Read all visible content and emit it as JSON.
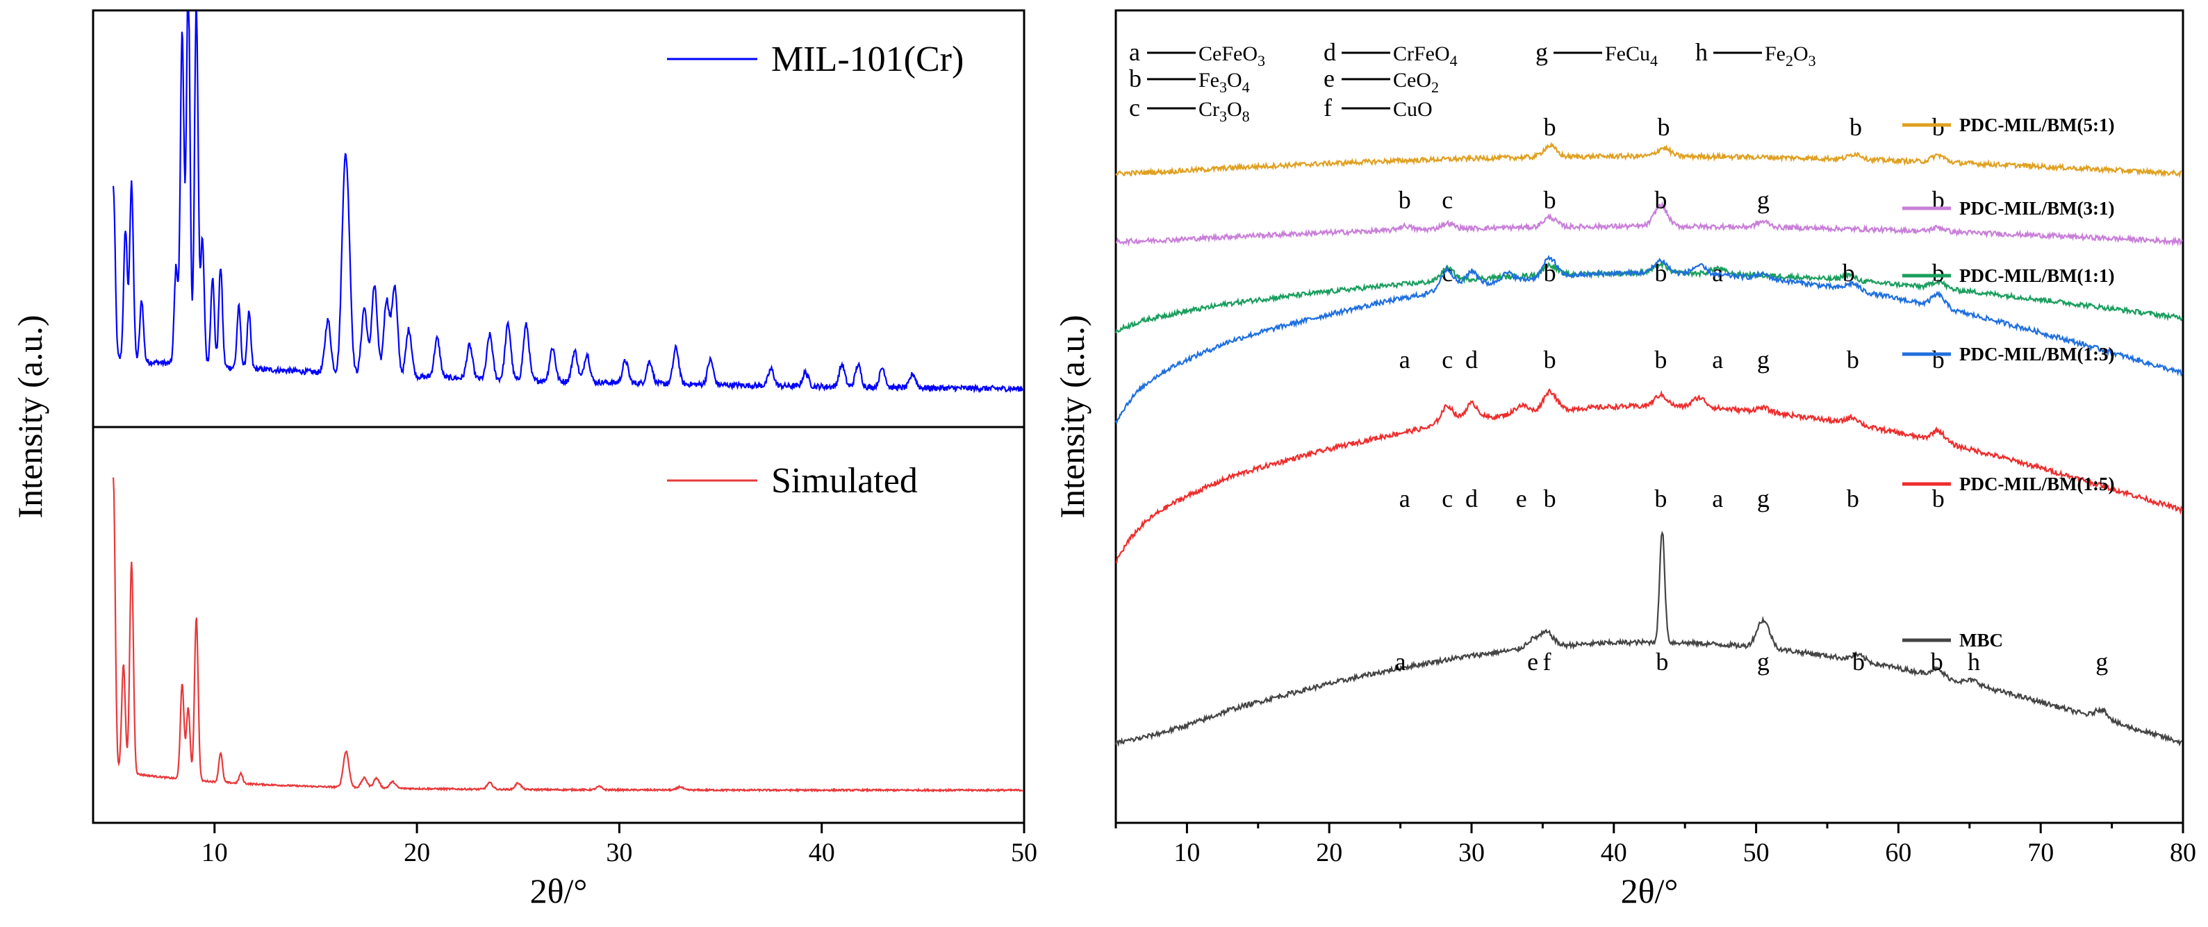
{
  "chart_data": [
    {
      "type": "line",
      "panel": "left",
      "xlabel": "2θ/°",
      "ylabel": "Intensity (a.u.)",
      "xlim": [
        4,
        50
      ],
      "x_ticks": [
        10,
        20,
        30,
        40,
        50
      ],
      "grid": false,
      "series": [
        {
          "name": "MIL-101(Cr)",
          "color": "#0000ff",
          "legend_position": "top-right",
          "peaks": [
            [
              5.0,
              0.62
            ],
            [
              5.6,
              0.47
            ],
            [
              5.9,
              0.64
            ],
            [
              6.4,
              0.22
            ],
            [
              8.1,
              0.35
            ],
            [
              8.4,
              1.2
            ],
            [
              8.7,
              1.4
            ],
            [
              9.1,
              1.3
            ],
            [
              9.4,
              0.45
            ],
            [
              9.9,
              0.32
            ],
            [
              10.3,
              0.36
            ],
            [
              11.2,
              0.22
            ],
            [
              11.7,
              0.2
            ],
            [
              15.6,
              0.19
            ],
            [
              16.4,
              0.56
            ],
            [
              16.6,
              0.45
            ],
            [
              17.4,
              0.24
            ],
            [
              17.9,
              0.32
            ],
            [
              18.5,
              0.27
            ],
            [
              18.9,
              0.32
            ],
            [
              19.6,
              0.17
            ],
            [
              21.0,
              0.14
            ],
            [
              22.6,
              0.12
            ],
            [
              23.6,
              0.16
            ],
            [
              24.5,
              0.2
            ],
            [
              25.4,
              0.2
            ],
            [
              26.7,
              0.12
            ],
            [
              27.8,
              0.11
            ],
            [
              28.4,
              0.1
            ],
            [
              30.3,
              0.08
            ],
            [
              31.5,
              0.08
            ],
            [
              32.8,
              0.13
            ],
            [
              34.5,
              0.09
            ],
            [
              37.5,
              0.06
            ],
            [
              39.2,
              0.05
            ],
            [
              41.0,
              0.08
            ],
            [
              41.8,
              0.08
            ],
            [
              43.0,
              0.07
            ],
            [
              44.5,
              0.05
            ]
          ]
        }
      ]
    },
    {
      "type": "line",
      "panel": "left-bottom",
      "xlabel": "2θ/°",
      "xlim": [
        4,
        50
      ],
      "grid": false,
      "series": [
        {
          "name": "Simulated",
          "color": "#e8383a",
          "legend_position": "top-right",
          "peaks": [
            [
              5.0,
              0.9
            ],
            [
              5.5,
              0.33
            ],
            [
              5.9,
              0.65
            ],
            [
              8.4,
              0.29
            ],
            [
              8.7,
              0.22
            ],
            [
              9.1,
              0.5
            ],
            [
              10.3,
              0.09
            ],
            [
              11.3,
              0.03
            ],
            [
              16.5,
              0.11
            ],
            [
              17.4,
              0.03
            ],
            [
              18.0,
              0.03
            ],
            [
              18.8,
              0.02
            ],
            [
              23.6,
              0.02
            ],
            [
              25.0,
              0.02
            ],
            [
              29.0,
              0.01
            ],
            [
              33.0,
              0.01
            ]
          ]
        }
      ]
    },
    {
      "type": "line",
      "panel": "right",
      "xlabel": "2θ/°",
      "ylabel": "Intensity (a.u.)",
      "xlim": [
        5,
        80
      ],
      "x_ticks": [
        10,
        20,
        30,
        40,
        50,
        60,
        70,
        80
      ],
      "grid": false,
      "phase_key": [
        {
          "letter": "a",
          "base": "CeFeO",
          "sub": "3"
        },
        {
          "letter": "b",
          "base": "Fe",
          "sub": "3",
          "tail": "O",
          "sub2": "4"
        },
        {
          "letter": "c",
          "base": "Cr",
          "sub": "3",
          "tail": "O",
          "sub2": "8"
        },
        {
          "letter": "d",
          "base": "CrFeO",
          "sub": "4"
        },
        {
          "letter": "e",
          "base": "CeO",
          "sub": "2"
        },
        {
          "letter": "f",
          "base": "CuO",
          "sub": ""
        },
        {
          "letter": "g",
          "base": "FeCu",
          "sub": "4"
        },
        {
          "letter": "h",
          "base": "Fe",
          "sub": "2",
          "tail": "O",
          "sub2": "3"
        }
      ],
      "series": [
        {
          "name": "PDC-MIL/BM(5:1)",
          "color": "#e0a020",
          "annotations": [
            {
              "x": 35.5,
              "label": "b"
            },
            {
              "x": 43.5,
              "label": "b"
            },
            {
              "x": 57.0,
              "label": "b"
            },
            {
              "x": 62.8,
              "label": "b"
            }
          ]
        },
        {
          "name": "PDC-MIL/BM(3:1)",
          "color": "#c97fd9",
          "annotations": [
            {
              "x": 25.3,
              "label": "b"
            },
            {
              "x": 28.3,
              "label": "c"
            },
            {
              "x": 35.5,
              "label": "b"
            },
            {
              "x": 43.3,
              "label": "b"
            },
            {
              "x": 50.5,
              "label": "g"
            },
            {
              "x": 62.8,
              "label": "b"
            }
          ]
        },
        {
          "name": "PDC-MIL/BM(1:1)",
          "color": "#1a9e5e",
          "annotations": [
            {
              "x": 28.3,
              "label": "c"
            },
            {
              "x": 35.5,
              "label": "b"
            },
            {
              "x": 43.3,
              "label": "b"
            },
            {
              "x": 47.3,
              "label": "a"
            },
            {
              "x": 56.5,
              "label": "b"
            },
            {
              "x": 62.8,
              "label": "b"
            }
          ]
        },
        {
          "name": "PDC-MIL/BM(1:3)",
          "color": "#1f6fdf",
          "annotations": [
            {
              "x": 25.3,
              "label": "a"
            },
            {
              "x": 28.3,
              "label": "c"
            },
            {
              "x": 30.0,
              "label": "d"
            },
            {
              "x": 35.5,
              "label": "b"
            },
            {
              "x": 43.3,
              "label": "b"
            },
            {
              "x": 47.3,
              "label": "a"
            },
            {
              "x": 50.5,
              "label": "g"
            },
            {
              "x": 56.8,
              "label": "b"
            },
            {
              "x": 62.8,
              "label": "b"
            }
          ]
        },
        {
          "name": "PDC-MIL/BM(1:5)",
          "color": "#ee2d2d",
          "annotations": [
            {
              "x": 25.3,
              "label": "a"
            },
            {
              "x": 28.3,
              "label": "c"
            },
            {
              "x": 30.0,
              "label": "d"
            },
            {
              "x": 33.5,
              "label": "e"
            },
            {
              "x": 35.5,
              "label": "b"
            },
            {
              "x": 43.3,
              "label": "b"
            },
            {
              "x": 47.3,
              "label": "a"
            },
            {
              "x": 50.5,
              "label": "g"
            },
            {
              "x": 56.8,
              "label": "b"
            },
            {
              "x": 62.8,
              "label": "b"
            }
          ]
        },
        {
          "name": "MBC",
          "color": "#444444",
          "annotations": [
            {
              "x": 25.0,
              "label": "a"
            },
            {
              "x": 34.3,
              "label": "e"
            },
            {
              "x": 35.3,
              "label": "f"
            },
            {
              "x": 43.4,
              "label": "b"
            },
            {
              "x": 50.5,
              "label": "g"
            },
            {
              "x": 57.2,
              "label": "b"
            },
            {
              "x": 62.7,
              "label": "b"
            },
            {
              "x": 65.3,
              "label": "h"
            },
            {
              "x": 74.3,
              "label": "g"
            }
          ]
        }
      ]
    }
  ]
}
